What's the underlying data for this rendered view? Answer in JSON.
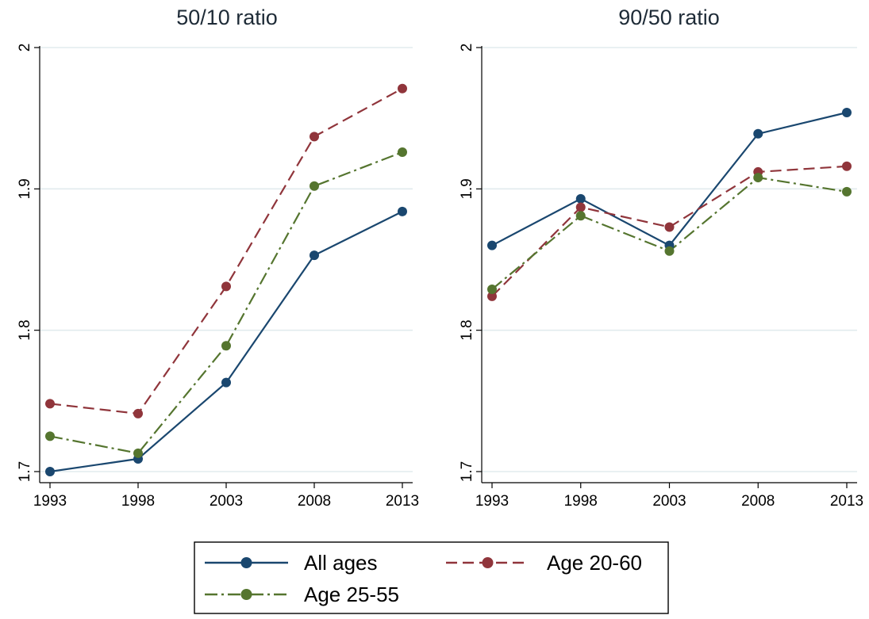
{
  "chart_data": [
    {
      "type": "line",
      "title": "50/10 ratio",
      "x": [
        1993,
        1998,
        2003,
        2008,
        2013
      ],
      "ylim": [
        1.7,
        2.0
      ],
      "yticks": [
        1.7,
        1.8,
        1.9,
        2.0
      ],
      "ytick_labels": [
        "1.7",
        "1.8",
        "1.9",
        "2"
      ],
      "xtick_labels": [
        "1993",
        "1998",
        "2003",
        "2008",
        "2013"
      ],
      "grid": true,
      "series": [
        {
          "name": "All ages",
          "color": "#1a476f",
          "dash": "solid",
          "values": [
            1.7,
            1.709,
            1.763,
            1.853,
            1.884
          ]
        },
        {
          "name": "Age 20-60",
          "color": "#90353b",
          "dash": "dash",
          "values": [
            1.748,
            1.741,
            1.831,
            1.937,
            1.971
          ]
        },
        {
          "name": "Age 25-55",
          "color": "#55752f",
          "dash": "dashdot",
          "values": [
            1.725,
            1.713,
            1.789,
            1.902,
            1.926
          ]
        }
      ]
    },
    {
      "type": "line",
      "title": "90/50 ratio",
      "x": [
        1993,
        1998,
        2003,
        2008,
        2013
      ],
      "ylim": [
        1.7,
        2.0
      ],
      "yticks": [
        1.7,
        1.8,
        1.9,
        2.0
      ],
      "ytick_labels": [
        "1.7",
        "1.8",
        "1.9",
        "2"
      ],
      "xtick_labels": [
        "1993",
        "1998",
        "2003",
        "2008",
        "2013"
      ],
      "grid": true,
      "series": [
        {
          "name": "All ages",
          "color": "#1a476f",
          "dash": "solid",
          "values": [
            1.86,
            1.893,
            1.86,
            1.939,
            1.954
          ]
        },
        {
          "name": "Age 20-60",
          "color": "#90353b",
          "dash": "dash",
          "values": [
            1.824,
            1.887,
            1.873,
            1.912,
            1.916
          ]
        },
        {
          "name": "Age 25-55",
          "color": "#55752f",
          "dash": "dashdot",
          "values": [
            1.829,
            1.881,
            1.856,
            1.908,
            1.898
          ]
        }
      ]
    }
  ],
  "legend": {
    "placement": "bottom",
    "entries": [
      {
        "label": "All ages",
        "color": "#1a476f",
        "dash": "solid"
      },
      {
        "label": "Age 20-60",
        "color": "#90353b",
        "dash": "dash"
      },
      {
        "label": "Age 25-55",
        "color": "#55752f",
        "dash": "dashdot"
      }
    ]
  }
}
